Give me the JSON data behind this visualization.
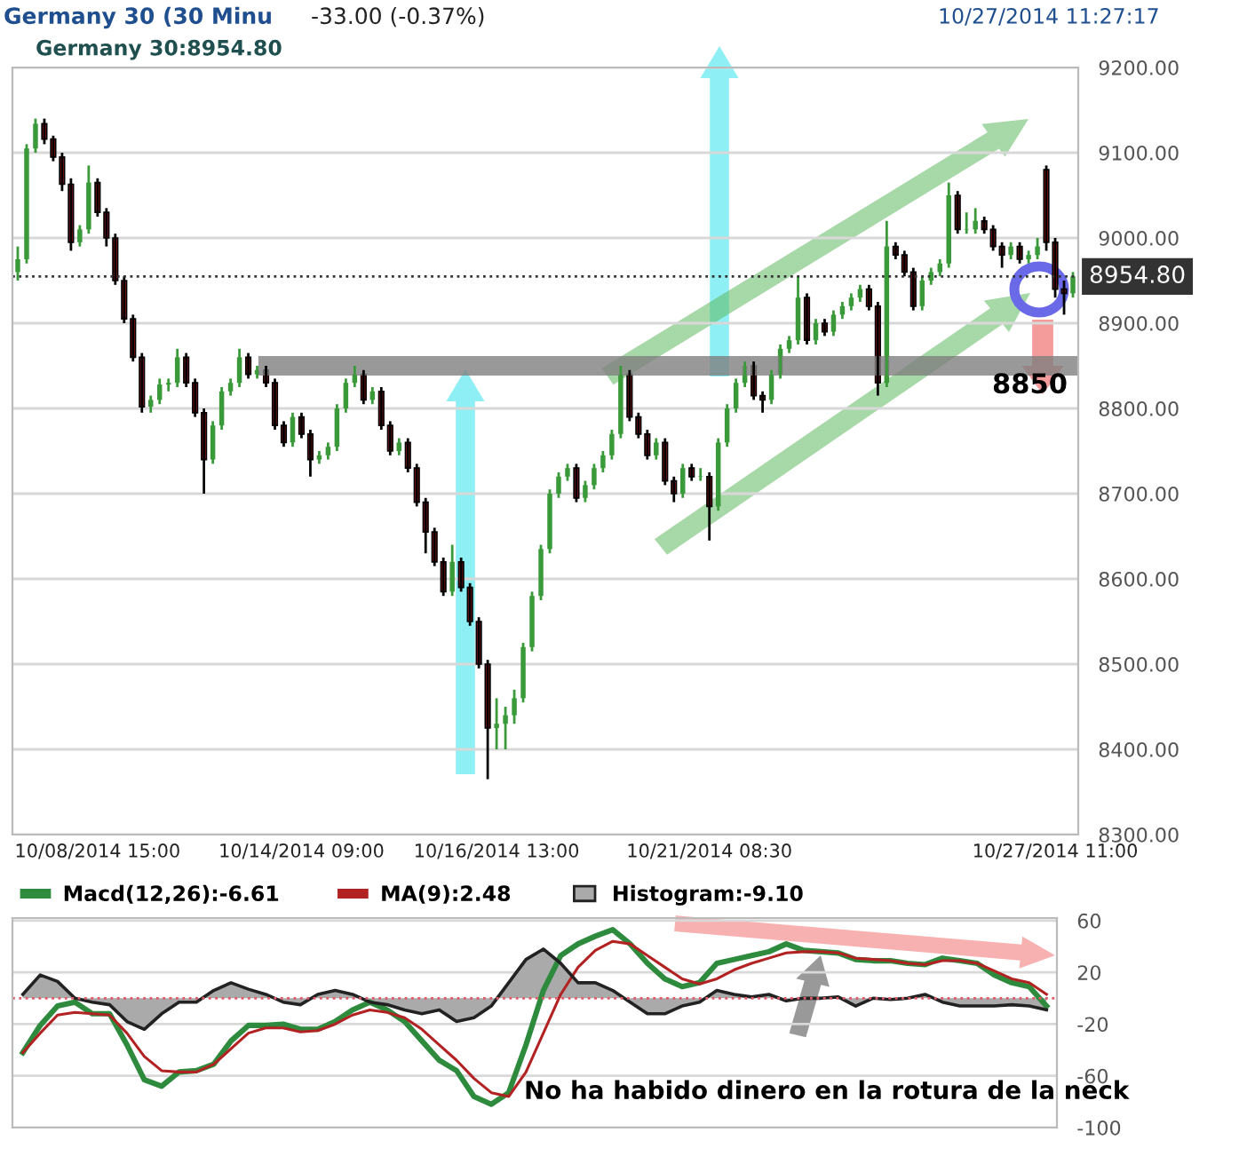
{
  "chart_data": [
    {
      "type": "candlestick",
      "title": "Germany 30 (30 Minu",
      "subtitle": "-33.00 (-0.37%)",
      "annotations": [
        "10/27/2014 11:27:17",
        "Germany 30:8954.80"
      ],
      "categories": [
        null,
        null,
        null,
        null,
        null,
        null,
        null,
        null,
        null,
        "10/08/2014 15:00",
        null,
        null,
        null,
        null,
        null,
        null,
        null,
        null,
        null,
        null,
        null,
        null,
        null,
        null,
        null,
        null,
        null,
        null,
        null,
        null,
        null,
        null,
        "10/14/2014 09:00",
        null,
        null,
        null,
        null,
        null,
        null,
        null,
        null,
        null,
        null,
        null,
        null,
        null,
        null,
        null,
        null,
        null,
        null,
        null,
        null,
        null,
        "10/16/2014 13:00",
        null,
        null,
        null,
        null,
        null,
        null,
        null,
        null,
        null,
        null,
        null,
        null,
        null,
        null,
        null,
        null,
        null,
        null,
        null,
        null,
        null,
        null,
        null,
        "10/21/2014 08:30",
        null,
        null,
        null,
        null,
        null,
        null,
        null,
        null,
        null,
        null,
        null,
        null,
        null,
        null,
        null,
        null,
        null,
        null,
        null,
        null,
        null,
        null,
        null,
        null,
        null,
        null,
        null,
        null,
        null,
        null,
        null,
        null,
        null,
        null,
        null,
        null,
        null,
        null,
        "10/27/2014 11:00",
        null,
        null
      ],
      "ohlc": [
        [
          8960,
          8990,
          8950,
          8975
        ],
        [
          8975,
          9110,
          8970,
          9105
        ],
        [
          9105,
          9140,
          9100,
          9134
        ],
        [
          9134,
          9140,
          9110,
          9116
        ],
        [
          9116,
          9120,
          9090,
          9095
        ],
        [
          9095,
          9100,
          9055,
          9063
        ],
        [
          9063,
          9070,
          8985,
          8995
        ],
        [
          8995,
          9015,
          8990,
          9010
        ],
        [
          9010,
          9085,
          9005,
          9065
        ],
        [
          9065,
          9070,
          9025,
          9030
        ],
        [
          9030,
          9035,
          8990,
          9000
        ],
        [
          9000,
          9005,
          8945,
          8950
        ],
        [
          8950,
          8955,
          8900,
          8905
        ],
        [
          8905,
          8910,
          8855,
          8860
        ],
        [
          8860,
          8865,
          8795,
          8802
        ],
        [
          8802,
          8815,
          8795,
          8810
        ],
        [
          8810,
          8835,
          8805,
          8828
        ],
        [
          8828,
          8835,
          8820,
          8830
        ],
        [
          8830,
          8870,
          8825,
          8860
        ],
        [
          8860,
          8865,
          8825,
          8830
        ],
        [
          8830,
          8835,
          8790,
          8795
        ],
        [
          8795,
          8800,
          8700,
          8740
        ],
        [
          8740,
          8785,
          8735,
          8780
        ],
        [
          8780,
          8825,
          8775,
          8820
        ],
        [
          8820,
          8835,
          8815,
          8830
        ],
        [
          8830,
          8870,
          8825,
          8860
        ],
        [
          8860,
          8865,
          8835,
          8840
        ],
        [
          8840,
          8850,
          8835,
          8845
        ],
        [
          8845,
          8850,
          8825,
          8830
        ],
        [
          8830,
          8835,
          8775,
          8780
        ],
        [
          8780,
          8785,
          8755,
          8760
        ],
        [
          8760,
          8795,
          8755,
          8790
        ],
        [
          8790,
          8795,
          8765,
          8770
        ],
        [
          8770,
          8775,
          8720,
          8740
        ],
        [
          8740,
          8750,
          8735,
          8745
        ],
        [
          8745,
          8760,
          8740,
          8755
        ],
        [
          8755,
          8805,
          8750,
          8800
        ],
        [
          8800,
          8835,
          8795,
          8830
        ],
        [
          8830,
          8850,
          8825,
          8840
        ],
        [
          8840,
          8845,
          8805,
          8810
        ],
        [
          8810,
          8825,
          8805,
          8820
        ],
        [
          8820,
          8825,
          8775,
          8780
        ],
        [
          8780,
          8785,
          8745,
          8750
        ],
        [
          8750,
          8765,
          8745,
          8760
        ],
        [
          8760,
          8765,
          8725,
          8730
        ],
        [
          8730,
          8735,
          8685,
          8690
        ],
        [
          8690,
          8695,
          8630,
          8655
        ],
        [
          8655,
          8660,
          8615,
          8620
        ],
        [
          8620,
          8625,
          8580,
          8585
        ],
        [
          8585,
          8640,
          8580,
          8620
        ],
        [
          8620,
          8625,
          8585,
          8590
        ],
        [
          8590,
          8595,
          8545,
          8550
        ],
        [
          8550,
          8555,
          8495,
          8500
        ],
        [
          8500,
          8505,
          8365,
          8425
        ],
        [
          8425,
          8460,
          8400,
          8430
        ],
        [
          8430,
          8450,
          8400,
          8440
        ],
        [
          8440,
          8470,
          8430,
          8460
        ],
        [
          8460,
          8525,
          8455,
          8520
        ],
        [
          8520,
          8585,
          8515,
          8580
        ],
        [
          8580,
          8640,
          8575,
          8635
        ],
        [
          8635,
          8705,
          8630,
          8700
        ],
        [
          8700,
          8725,
          8695,
          8720
        ],
        [
          8720,
          8735,
          8715,
          8730
        ],
        [
          8730,
          8735,
          8690,
          8695
        ],
        [
          8695,
          8715,
          8690,
          8710
        ],
        [
          8710,
          8735,
          8705,
          8730
        ],
        [
          8730,
          8750,
          8725,
          8745
        ],
        [
          8745,
          8775,
          8740,
          8770
        ],
        [
          8770,
          8850,
          8765,
          8840
        ],
        [
          8840,
          8845,
          8785,
          8790
        ],
        [
          8790,
          8795,
          8765,
          8770
        ],
        [
          8770,
          8775,
          8740,
          8745
        ],
        [
          8745,
          8765,
          8740,
          8760
        ],
        [
          8760,
          8765,
          8710,
          8715
        ],
        [
          8715,
          8720,
          8690,
          8700
        ],
        [
          8700,
          8735,
          8695,
          8730
        ],
        [
          8730,
          8735,
          8715,
          8720
        ],
        [
          8720,
          8730,
          8715,
          8720
        ],
        [
          8720,
          8725,
          8645,
          8685
        ],
        [
          8685,
          8765,
          8680,
          8760
        ],
        [
          8760,
          8805,
          8755,
          8800
        ],
        [
          8800,
          8835,
          8795,
          8830
        ],
        [
          8830,
          8855,
          8825,
          8850
        ],
        [
          8850,
          8855,
          8810,
          8815
        ],
        [
          8815,
          8820,
          8795,
          8810
        ],
        [
          8810,
          8845,
          8805,
          8840
        ],
        [
          8840,
          8875,
          8835,
          8870
        ],
        [
          8870,
          8885,
          8865,
          8880
        ],
        [
          8880,
          8955,
          8875,
          8930
        ],
        [
          8930,
          8935,
          8875,
          8880
        ],
        [
          8880,
          8905,
          8875,
          8900
        ],
        [
          8900,
          8905,
          8885,
          8890
        ],
        [
          8890,
          8915,
          8885,
          8910
        ],
        [
          8910,
          8925,
          8905,
          8920
        ],
        [
          8920,
          8935,
          8915,
          8930
        ],
        [
          8930,
          8945,
          8925,
          8940
        ],
        [
          8940,
          8945,
          8915,
          8920
        ],
        [
          8920,
          8925,
          8815,
          8830
        ],
        [
          8830,
          9020,
          8825,
          8990
        ],
        [
          8990,
          8995,
          8975,
          8980
        ],
        [
          8980,
          8985,
          8955,
          8960
        ],
        [
          8960,
          8965,
          8915,
          8920
        ],
        [
          8920,
          8955,
          8915,
          8950
        ],
        [
          8950,
          8965,
          8945,
          8960
        ],
        [
          8960,
          8975,
          8955,
          8970
        ],
        [
          8970,
          9065,
          8965,
          9050
        ],
        [
          9050,
          9055,
          9005,
          9010
        ],
        [
          9010,
          9030,
          9005,
          9010
        ],
        [
          9010,
          9035,
          9005,
          9020
        ],
        [
          9020,
          9025,
          9005,
          9010
        ],
        [
          9010,
          9015,
          8985,
          8990
        ],
        [
          8990,
          8995,
          8965,
          8980
        ],
        [
          8980,
          8995,
          8975,
          8990
        ],
        [
          8990,
          8995,
          8970,
          8975
        ],
        [
          8975,
          8985,
          8970,
          8980
        ],
        [
          8980,
          9000,
          8975,
          8990
        ],
        [
          9080,
          9085,
          8985,
          8995
        ],
        [
          8995,
          9000,
          8930,
          8940
        ],
        [
          8940,
          8950,
          8910,
          8935
        ],
        [
          8935,
          8960,
          8930,
          8955
        ]
      ],
      "ylim": [
        8300,
        9200
      ],
      "yticks": [
        {
          "value": 8300,
          "label": "8300.00"
        },
        {
          "value": 8400,
          "label": "8400.00"
        },
        {
          "value": 8500,
          "label": "8500.00"
        },
        {
          "value": 8600,
          "label": "8600.00"
        },
        {
          "value": 8700,
          "label": "8700.00"
        },
        {
          "value": 8800,
          "label": "8800.00"
        },
        {
          "value": 8900,
          "label": "8900.00"
        },
        {
          "value": 9000,
          "label": "9000.00"
        },
        {
          "value": 9100,
          "label": "9100.00"
        },
        {
          "value": 9200,
          "label": "9200.00"
        }
      ],
      "ref_lines": [
        {
          "axis": "y",
          "value": 8954.8,
          "label": "8954.80",
          "color": "#333333",
          "line_style": "dotted"
        },
        {
          "axis": "y",
          "value": 8850,
          "label": "8850",
          "color": "#808080",
          "line_style": "solid"
        }
      ],
      "grid": "y"
    },
    {
      "type": "line",
      "categories": [
        null,
        null,
        null,
        null,
        null,
        null,
        null,
        null,
        null,
        null,
        null,
        null,
        null,
        null,
        null,
        null,
        null,
        null,
        null,
        null,
        null,
        null,
        null,
        null,
        null,
        null,
        null,
        null,
        null,
        null,
        null,
        null,
        null,
        null,
        null,
        null,
        null,
        null,
        null,
        null,
        null,
        null,
        null,
        null,
        null,
        null,
        null,
        null,
        null,
        null,
        null,
        null,
        null,
        null,
        null,
        null,
        null,
        null,
        null,
        null
      ],
      "series": [
        {
          "name": "Macd(12,26):-6.61",
          "color": "#2e8b3e",
          "values": [
            -42,
            -21,
            -6,
            -3,
            -12,
            -12,
            -36,
            -63,
            -68,
            -57,
            -56,
            -51,
            -33,
            -21,
            -21,
            -20,
            -24,
            -24,
            -18,
            -9,
            -3,
            -9,
            -18,
            -33,
            -48,
            -56,
            -76,
            -82,
            -73,
            -36,
            6,
            33,
            42,
            48,
            53,
            42,
            27,
            15,
            9,
            12,
            27,
            30,
            33,
            36,
            42,
            37,
            36,
            35,
            30,
            29,
            29,
            27,
            26,
            31,
            29,
            27,
            18,
            12,
            9,
            -6
          ]
        },
        {
          "name": "MA(9):2.48",
          "color": "#b22222",
          "values": [
            -42,
            -27,
            -13,
            -11,
            -12,
            -13,
            -27,
            -45,
            -56,
            -57,
            -57,
            -51,
            -39,
            -27,
            -23,
            -23,
            -26,
            -25,
            -20,
            -13,
            -9,
            -11,
            -15,
            -24,
            -36,
            -48,
            -62,
            -73,
            -76,
            -57,
            -27,
            3,
            24,
            37,
            44,
            42,
            33,
            24,
            15,
            11,
            15,
            22,
            27,
            31,
            35,
            36,
            36,
            35,
            31,
            30,
            29,
            27,
            26,
            29,
            29,
            27,
            21,
            15,
            12,
            3
          ]
        },
        {
          "name": "Histogram:-9.10",
          "type": "area",
          "color": "#aaaaaa",
          "values": [
            3,
            18,
            13,
            0,
            -3,
            -5,
            -18,
            -24,
            -12,
            -3,
            -3,
            6,
            12,
            7,
            3,
            -3,
            -5,
            3,
            6,
            3,
            -3,
            -5,
            -9,
            -12,
            -9,
            -18,
            -15,
            -6,
            12,
            30,
            38,
            27,
            12,
            12,
            6,
            -3,
            -12,
            -12,
            -6,
            -3,
            6,
            3,
            1,
            3,
            -2,
            0,
            0,
            1,
            -6,
            0,
            -1,
            0,
            3,
            -3,
            -6,
            -6,
            -6,
            -5,
            -6,
            -9
          ]
        }
      ],
      "annotations": [
        "No ha habido dinero en la rotura de la neck"
      ],
      "ylim": [
        -100,
        62
      ],
      "yticks": [
        60,
        20,
        -20,
        -60,
        -100
      ],
      "ref_lines": [
        {
          "axis": "y",
          "value": 0,
          "color": "#e05a6a",
          "line_style": "dotted"
        }
      ],
      "grid": "y",
      "legend": "top left",
      "tick_labels": "y"
    }
  ]
}
